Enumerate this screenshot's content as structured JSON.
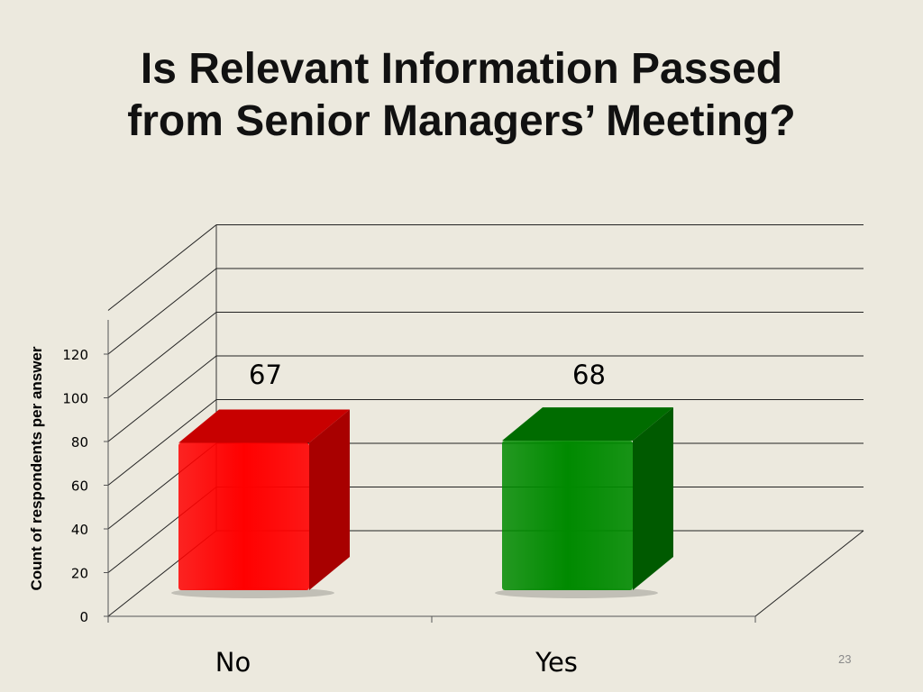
{
  "slide": {
    "title_line1": "Is Relevant Information Passed",
    "title_line2": "from Senior Managers’ Meeting?",
    "page_number": "23"
  },
  "chart_data": {
    "type": "bar",
    "style": "3d",
    "categories": [
      "No",
      "Yes"
    ],
    "values": [
      67,
      68
    ],
    "data_labels": [
      "67",
      "68"
    ],
    "ylabel": "Count of respondents per answer",
    "ylim": [
      0,
      140
    ],
    "yticks": [
      0,
      20,
      40,
      60,
      80,
      100,
      120
    ],
    "grid": true,
    "legend": "none",
    "colors": {
      "No": {
        "front": "#ff0000",
        "side": "#a80000",
        "top": "#c80000"
      },
      "Yes": {
        "front": "#008a00",
        "side": "#005a00",
        "top": "#006c00"
      }
    }
  }
}
